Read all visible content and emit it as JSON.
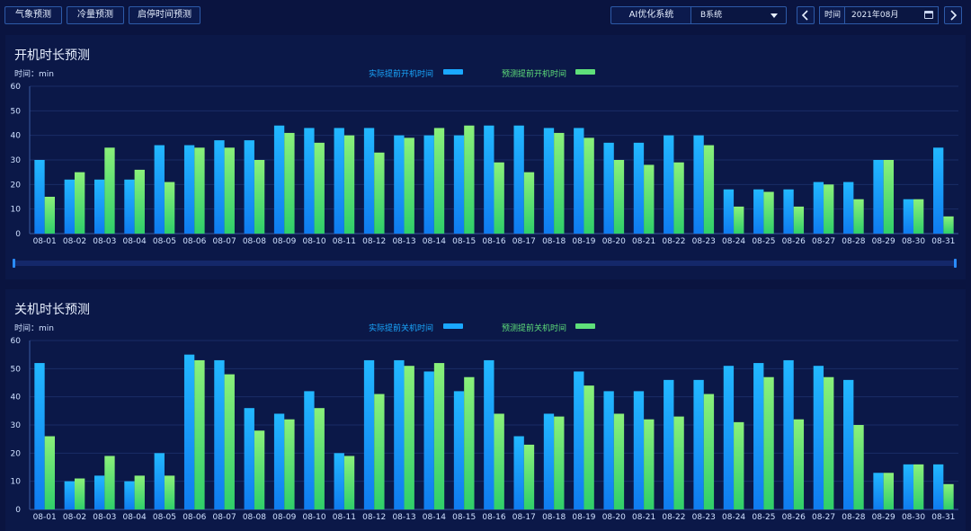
{
  "toolbar": {
    "buttons": [
      "气象预测",
      "冷量预测",
      "启停时间预测"
    ],
    "ai_label": "AI优化系统",
    "system_select": "B系统",
    "time_label": "时间",
    "date_value": "2021年08月",
    "prev_icon": "chevron-left-icon",
    "next_icon": "chevron-right-icon",
    "calendar_icon": "calendar-icon"
  },
  "colors": {
    "actual": "#1aa8ff",
    "predicted": "#5fe07a",
    "axis_text": "#cfe0ff",
    "grid": "#1a2d66"
  },
  "chart_data": [
    {
      "type": "bar",
      "title": "开机时长预测",
      "ylabel": "时间：min",
      "ylim": [
        0,
        60
      ],
      "yticks": [
        0,
        10,
        20,
        30,
        40,
        50,
        60
      ],
      "categories": [
        "08-01",
        "08-02",
        "08-03",
        "08-04",
        "08-05",
        "08-06",
        "08-07",
        "08-08",
        "08-09",
        "08-10",
        "08-11",
        "08-12",
        "08-13",
        "08-14",
        "08-15",
        "08-16",
        "08-17",
        "08-18",
        "08-19",
        "08-20",
        "08-21",
        "08-22",
        "08-23",
        "08-24",
        "08-25",
        "08-26",
        "08-27",
        "08-28",
        "08-29",
        "08-30",
        "08-31"
      ],
      "series": [
        {
          "name": "实际提前开机时间",
          "values": [
            30,
            22,
            22,
            22,
            36,
            36,
            38,
            38,
            44,
            43,
            43,
            43,
            40,
            40,
            40,
            44,
            44,
            43,
            43,
            37,
            37,
            40,
            40,
            18,
            18,
            18,
            21,
            21,
            30,
            14,
            35
          ]
        },
        {
          "name": "预测提前开机时间",
          "values": [
            15,
            25,
            35,
            26,
            21,
            35,
            35,
            30,
            41,
            37,
            40,
            33,
            39,
            43,
            44,
            29,
            25,
            41,
            39,
            30,
            28,
            29,
            36,
            11,
            17,
            11,
            20,
            14,
            30,
            14,
            7
          ]
        }
      ],
      "legend_position": "top-center"
    },
    {
      "type": "bar",
      "title": "关机时长预测",
      "ylabel": "时间：min",
      "ylim": [
        0,
        60
      ],
      "yticks": [
        0,
        10,
        20,
        30,
        40,
        50,
        60
      ],
      "categories": [
        "08-01",
        "08-02",
        "08-03",
        "08-04",
        "08-05",
        "08-06",
        "08-07",
        "08-08",
        "08-09",
        "08-10",
        "08-11",
        "08-12",
        "08-13",
        "08-14",
        "08-15",
        "08-16",
        "08-17",
        "08-18",
        "08-19",
        "08-20",
        "08-21",
        "08-22",
        "08-23",
        "08-24",
        "08-25",
        "08-26",
        "08-27",
        "08-28",
        "08-29",
        "08-30",
        "08-31"
      ],
      "series": [
        {
          "name": "实际提前关机时间",
          "values": [
            52,
            10,
            12,
            10,
            20,
            55,
            53,
            36,
            34,
            42,
            20,
            53,
            53,
            49,
            42,
            53,
            26,
            34,
            49,
            42,
            42,
            46,
            46,
            51,
            52,
            53,
            51,
            46,
            13,
            16,
            16
          ]
        },
        {
          "name": "预测提前关机时间",
          "values": [
            26,
            11,
            19,
            12,
            12,
            53,
            48,
            28,
            32,
            36,
            19,
            41,
            51,
            52,
            47,
            34,
            23,
            33,
            44,
            34,
            32,
            33,
            41,
            31,
            47,
            32,
            47,
            30,
            13,
            16,
            9
          ]
        }
      ],
      "legend_position": "top-center"
    }
  ]
}
